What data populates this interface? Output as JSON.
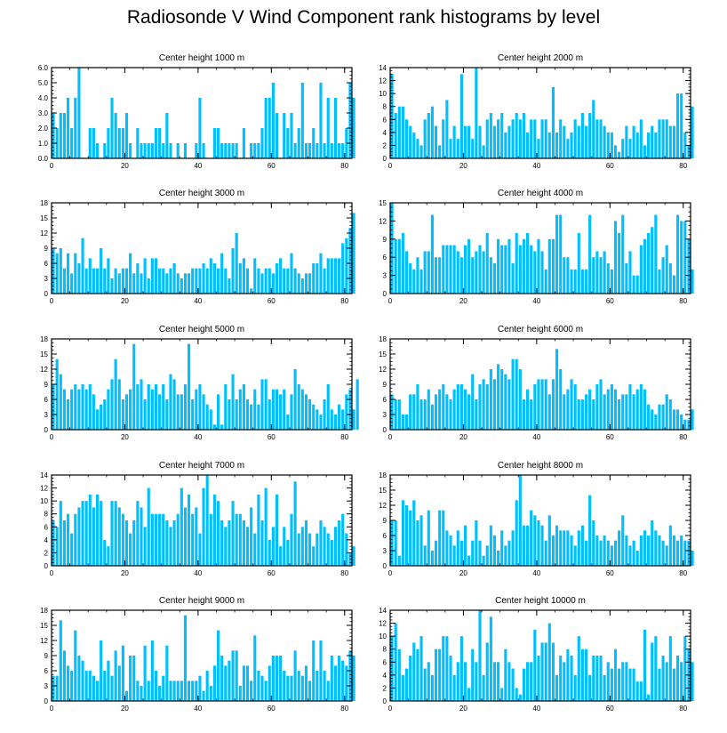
{
  "title": "Radiosonde V Wind Component rank histograms by level",
  "bar_color": "#00BFFF",
  "chart_data": [
    {
      "type": "bar",
      "title": "Center height 1000 m",
      "xlim": [
        0,
        82
      ],
      "ylim": [
        0,
        6
      ],
      "xticks": [
        0,
        20,
        40,
        60,
        80
      ],
      "yticks": [
        0,
        1,
        2,
        3,
        4,
        5,
        6
      ],
      "ytick_labels": [
        "0.0",
        "1.0",
        "2.0",
        "3.0",
        "4.0",
        "5.0",
        "6.0"
      ],
      "values": [
        3,
        2,
        3,
        3,
        4,
        2,
        4,
        6,
        0,
        0,
        2,
        2,
        1,
        0,
        1,
        2,
        4,
        3,
        2,
        2,
        3,
        1,
        0,
        2,
        1,
        1,
        1,
        1,
        2,
        2,
        1,
        3,
        1,
        0,
        1,
        0,
        1,
        0,
        0,
        1,
        4,
        1,
        0,
        0,
        2,
        2,
        1,
        1,
        1,
        1,
        1,
        0,
        2,
        0,
        1,
        1,
        1,
        2,
        4,
        4,
        5,
        3,
        0,
        3,
        2,
        3,
        1,
        2,
        5,
        1,
        1,
        2,
        1,
        5,
        1,
        4,
        1,
        4,
        1,
        1,
        2,
        5,
        4
      ]
    },
    {
      "type": "bar",
      "title": "Center height 2000 m",
      "xlim": [
        0,
        82
      ],
      "ylim": [
        0,
        14
      ],
      "xticks": [
        0,
        20,
        40,
        60,
        80
      ],
      "yticks": [
        0,
        2,
        4,
        6,
        8,
        10,
        12,
        14
      ],
      "ytick_labels": [
        "0",
        "2",
        "4",
        "6",
        "8",
        "10",
        "12",
        "14"
      ],
      "values": [
        13,
        7,
        8,
        8,
        6,
        5,
        4,
        3,
        2,
        6,
        7,
        8,
        5,
        2,
        6,
        9,
        3,
        5,
        3,
        13,
        5,
        5,
        3,
        14,
        5,
        2,
        6,
        7,
        5,
        6,
        7,
        4,
        5,
        6,
        7,
        6,
        7,
        4,
        6,
        6,
        3,
        6,
        6,
        4,
        11,
        4,
        6,
        5,
        3,
        4,
        6,
        5,
        7,
        5,
        7,
        9,
        6,
        6,
        5,
        4,
        4,
        2,
        1,
        3,
        5,
        3,
        5,
        4,
        6,
        2,
        4,
        5,
        4,
        6,
        6,
        6,
        5,
        5,
        10,
        10,
        4,
        2,
        8
      ]
    },
    {
      "type": "bar",
      "title": "Center height 3000 m",
      "xlim": [
        0,
        82
      ],
      "ylim": [
        0,
        18
      ],
      "xticks": [
        0,
        20,
        40,
        60,
        80
      ],
      "yticks": [
        0,
        3,
        6,
        9,
        12,
        15,
        18
      ],
      "ytick_labels": [
        "0",
        "3",
        "6",
        "9",
        "12",
        "15",
        "18"
      ],
      "values": [
        9,
        8,
        9,
        5,
        8,
        4,
        8,
        6,
        11,
        5,
        7,
        5,
        5,
        9,
        5,
        7,
        3,
        5,
        4,
        5,
        5,
        8,
        4,
        6,
        4,
        7,
        3,
        7,
        7,
        5,
        5,
        4,
        5,
        6,
        4,
        3,
        4,
        4,
        5,
        5,
        5,
        6,
        5,
        7,
        6,
        5,
        8,
        5,
        3,
        9,
        12,
        6,
        7,
        5,
        1,
        7,
        5,
        4,
        5,
        5,
        4,
        6,
        7,
        5,
        5,
        8,
        5,
        4,
        3,
        4,
        4,
        6,
        6,
        8,
        5,
        7,
        7,
        7,
        7,
        10,
        11,
        13,
        16
      ]
    },
    {
      "type": "bar",
      "title": "Center height 4000 m",
      "xlim": [
        0,
        82
      ],
      "ylim": [
        0,
        15
      ],
      "xticks": [
        0,
        20,
        40,
        60,
        80
      ],
      "yticks": [
        0,
        3,
        6,
        9,
        12,
        15
      ],
      "ytick_labels": [
        "0",
        "3",
        "6",
        "9",
        "12",
        "15"
      ],
      "values": [
        15,
        9,
        9,
        10,
        7,
        5,
        4,
        6,
        4,
        7,
        7,
        13,
        6,
        6,
        8,
        8,
        8,
        8,
        7,
        6,
        8,
        9,
        6,
        7,
        8,
        7,
        10,
        6,
        5,
        9,
        8,
        8,
        9,
        5,
        10,
        8,
        9,
        10,
        8,
        7,
        9,
        7,
        4,
        9,
        9,
        13,
        13,
        6,
        6,
        4,
        4,
        10,
        4,
        4,
        13,
        6,
        7,
        6,
        7,
        5,
        4,
        12,
        10,
        13,
        5,
        7,
        3,
        3,
        8,
        9,
        10,
        11,
        13,
        4,
        6,
        8,
        5,
        3,
        13,
        12,
        12,
        9,
        4
      ]
    },
    {
      "type": "bar",
      "title": "Center height 5000 m",
      "xlim": [
        0,
        82
      ],
      "ylim": [
        0,
        18
      ],
      "xticks": [
        0,
        20,
        40,
        60,
        80
      ],
      "yticks": [
        0,
        3,
        6,
        9,
        12,
        15,
        18
      ],
      "ytick_labels": [
        "0",
        "3",
        "6",
        "9",
        "12",
        "15",
        "18"
      ],
      "values": [
        9,
        14,
        11,
        8,
        6,
        8,
        9,
        8,
        9,
        8,
        9,
        7,
        4,
        5,
        6,
        8,
        10,
        14,
        10,
        6,
        7,
        8,
        17,
        9,
        10,
        6,
        9,
        8,
        9,
        7,
        9,
        6,
        11,
        10,
        7,
        7,
        9,
        17,
        6,
        8,
        9,
        7,
        5,
        4,
        1,
        7,
        1,
        9,
        6,
        11,
        6,
        8,
        9,
        6,
        5,
        8,
        5,
        10,
        10,
        6,
        8,
        8,
        7,
        8,
        3,
        7,
        12,
        9,
        8,
        7,
        6,
        5,
        4,
        3,
        6,
        9,
        4,
        3,
        5,
        4,
        7,
        8,
        4,
        10
      ]
    },
    {
      "type": "bar",
      "title": "Center height 6000 m",
      "xlim": [
        0,
        82
      ],
      "ylim": [
        0,
        18
      ],
      "xticks": [
        0,
        20,
        40,
        60,
        80
      ],
      "yticks": [
        0,
        3,
        6,
        9,
        12,
        15,
        18
      ],
      "ytick_labels": [
        "0",
        "3",
        "6",
        "9",
        "12",
        "15",
        "18"
      ],
      "values": [
        7,
        6,
        6,
        3,
        3,
        7,
        7,
        9,
        6,
        6,
        8,
        5,
        7,
        8,
        9,
        7,
        6,
        8,
        9,
        9,
        8,
        7,
        11,
        6,
        9,
        10,
        9,
        12,
        10,
        13,
        12,
        11,
        10,
        14,
        14,
        12,
        6,
        8,
        6,
        9,
        10,
        10,
        10,
        7,
        10,
        16,
        12,
        7,
        8,
        10,
        9,
        6,
        6,
        7,
        8,
        6,
        9,
        10,
        7,
        8,
        9,
        8,
        6,
        7,
        7,
        9,
        7,
        8,
        9,
        8,
        5,
        4,
        3,
        5,
        5,
        7,
        6,
        4,
        4,
        3,
        2,
        2,
        4
      ]
    },
    {
      "type": "bar",
      "title": "Center height 7000 m",
      "xlim": [
        0,
        82
      ],
      "ylim": [
        0,
        14
      ],
      "xticks": [
        0,
        20,
        40,
        60,
        80
      ],
      "yticks": [
        0,
        2,
        4,
        6,
        8,
        10,
        12,
        14
      ],
      "ytick_labels": [
        "0",
        "2",
        "4",
        "6",
        "8",
        "10",
        "12",
        "14"
      ],
      "values": [
        7,
        6,
        10,
        7,
        8,
        5,
        8,
        9,
        10,
        10,
        11,
        9,
        11,
        10,
        4,
        3,
        10,
        10,
        9,
        8,
        7,
        5,
        7,
        10,
        9,
        6,
        12,
        8,
        8,
        8,
        8,
        7,
        6,
        7,
        8,
        12,
        9,
        11,
        8,
        9,
        5,
        12,
        14,
        8,
        11,
        10,
        7,
        6,
        7,
        10,
        8,
        8,
        7,
        6,
        9,
        5,
        11,
        7,
        12,
        4,
        6,
        11,
        3,
        6,
        4,
        8,
        13,
        5,
        6,
        7,
        5,
        3,
        5,
        7,
        6,
        5,
        4,
        6,
        7,
        8,
        5,
        2,
        3
      ]
    },
    {
      "type": "bar",
      "title": "Center height 8000 m",
      "xlim": [
        0,
        82
      ],
      "ylim": [
        0,
        18
      ],
      "xticks": [
        0,
        20,
        40,
        60,
        80
      ],
      "yticks": [
        0,
        3,
        6,
        9,
        12,
        15,
        18
      ],
      "ytick_labels": [
        "0",
        "3",
        "6",
        "9",
        "12",
        "15",
        "18"
      ],
      "values": [
        9,
        9,
        2,
        13,
        12,
        11,
        13,
        9,
        10,
        4,
        11,
        3,
        5,
        11,
        11,
        7,
        6,
        4,
        7,
        5,
        8,
        2,
        5,
        9,
        5,
        2,
        4,
        8,
        6,
        3,
        7,
        4,
        5,
        7,
        13,
        18,
        8,
        8,
        11,
        10,
        9,
        8,
        5,
        10,
        6,
        8,
        7,
        7,
        7,
        6,
        4,
        7,
        8,
        5,
        14,
        9,
        6,
        5,
        6,
        5,
        4,
        5,
        7,
        10,
        6,
        4,
        5,
        3,
        6,
        7,
        6,
        9,
        7,
        6,
        5,
        4,
        8,
        6,
        5,
        6,
        5,
        5,
        3
      ]
    },
    {
      "type": "bar",
      "title": "Center height 9000 m",
      "xlim": [
        0,
        82
      ],
      "ylim": [
        0,
        18
      ],
      "xticks": [
        0,
        20,
        40,
        60,
        80
      ],
      "yticks": [
        0,
        3,
        6,
        9,
        12,
        15,
        18
      ],
      "ytick_labels": [
        "0",
        "3",
        "6",
        "9",
        "12",
        "15",
        "18"
      ],
      "values": [
        5,
        5,
        16,
        10,
        7,
        6,
        14,
        9,
        8,
        6,
        6,
        5,
        4,
        12,
        6,
        8,
        5,
        10,
        7,
        11,
        2,
        9,
        9,
        4,
        3,
        11,
        4,
        12,
        6,
        3,
        5,
        11,
        4,
        4,
        4,
        4,
        17,
        4,
        4,
        4,
        5,
        2,
        6,
        3,
        7,
        14,
        9,
        7,
        8,
        10,
        10,
        3,
        7,
        7,
        4,
        13,
        6,
        5,
        4,
        7,
        9,
        9,
        9,
        6,
        5,
        5,
        10,
        6,
        5,
        7,
        4,
        12,
        6,
        12,
        6,
        4,
        9,
        7,
        9,
        8,
        7,
        10,
        9
      ]
    },
    {
      "type": "bar",
      "title": "Center height 10000 m",
      "xlim": [
        0,
        82
      ],
      "ylim": [
        0,
        14
      ],
      "xticks": [
        0,
        20,
        40,
        60,
        80
      ],
      "yticks": [
        0,
        2,
        4,
        6,
        8,
        10,
        12,
        14
      ],
      "ytick_labels": [
        "0",
        "2",
        "4",
        "6",
        "8",
        "10",
        "12",
        "14"
      ],
      "values": [
        10,
        12,
        8,
        4,
        5,
        7,
        9,
        8,
        10,
        5,
        6,
        4,
        8,
        8,
        10,
        10,
        7,
        4,
        6,
        10,
        6,
        2,
        8,
        6,
        14,
        4,
        9,
        13,
        6,
        6,
        2,
        8,
        6,
        5,
        2,
        1,
        5,
        6,
        6,
        11,
        7,
        9,
        9,
        12,
        9,
        4,
        7,
        6,
        8,
        7,
        4,
        10,
        8,
        8,
        4,
        7,
        7,
        7,
        4,
        6,
        5,
        8,
        5,
        6,
        6,
        5,
        5,
        3,
        3,
        11,
        1,
        9,
        10,
        5,
        7,
        6,
        10,
        5,
        7,
        6,
        10,
        8,
        6
      ]
    }
  ]
}
